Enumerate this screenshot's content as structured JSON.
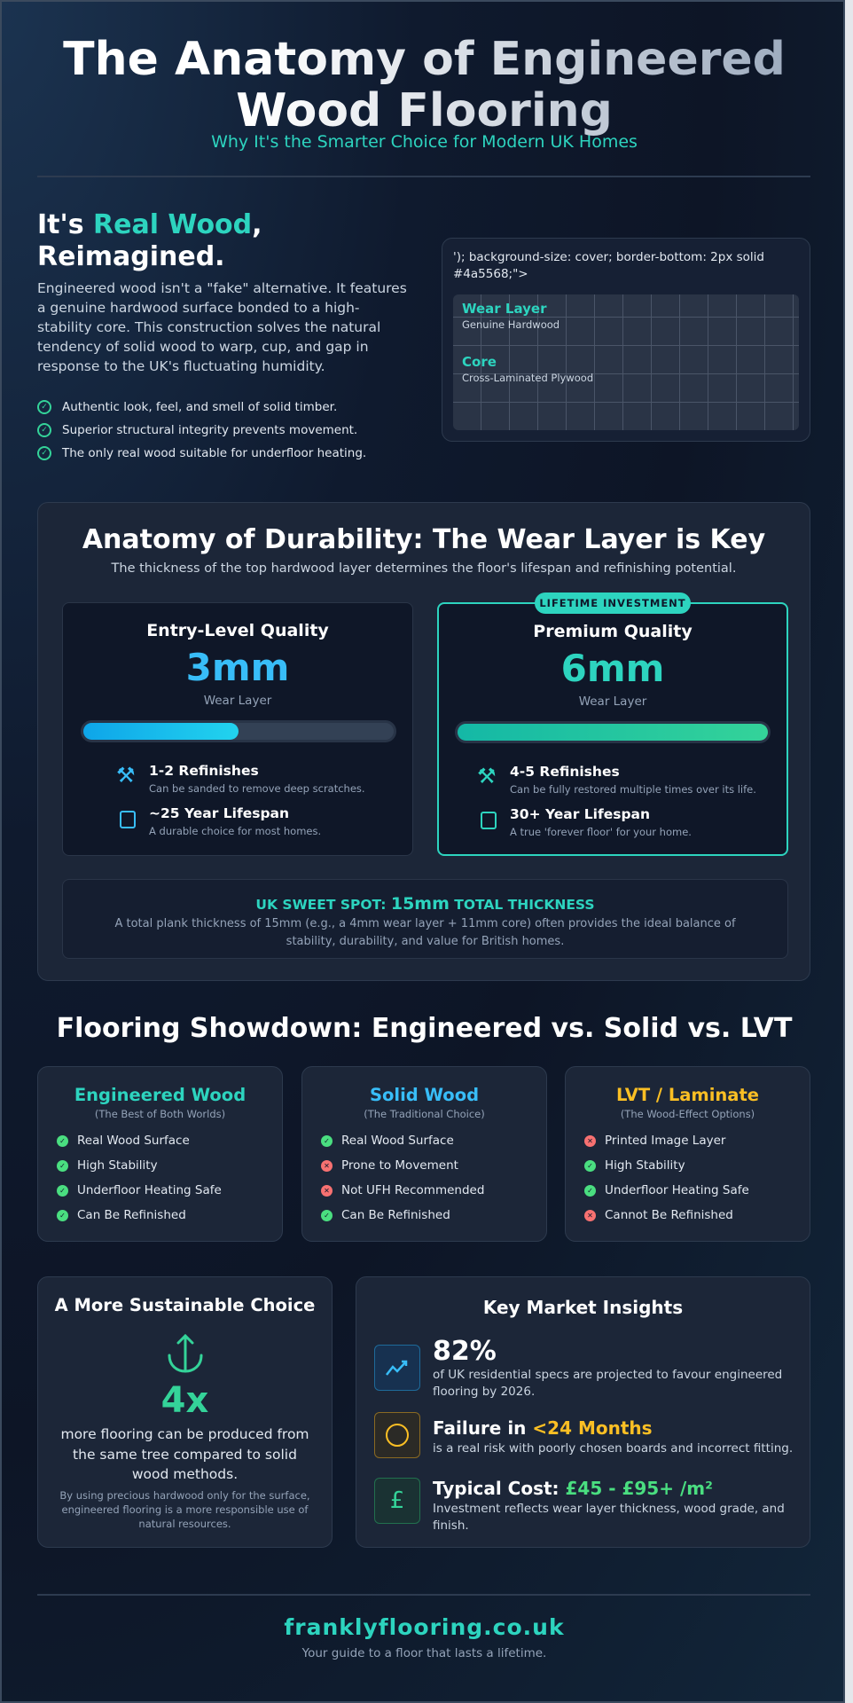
{
  "header": {
    "title_line1": "The Anatomy of Engineered",
    "title_line2": "Wood Flooring",
    "subtitle": "Why It's the Smarter Choice for Modern UK Homes"
  },
  "intro": {
    "heading_pre": "It's ",
    "heading_accent": "Real Wood",
    "heading_post": ",",
    "heading_line2": "Reimagined.",
    "paragraph": "Engineered wood isn't a \"fake\" alternative. It features a genuine hardwood surface bonded to a high-stability core. This construction solves the natural tendency of solid wood to warp, cup, and gap in response to the UK's fluctuating humidity.",
    "checks": [
      "Authentic look, feel, and smell of solid timber.",
      "Superior structural integrity prevents movement.",
      "The only real wood suitable for underfloor heating."
    ],
    "diagram": {
      "broken_text": "'); background-size: cover; border-bottom: 2px solid #4a5568;\">",
      "wear_label": "Wear Layer",
      "wear_sub": "Genuine Hardwood",
      "core_label": "Core",
      "core_sub": "Cross-Laminated Plywood"
    }
  },
  "durability": {
    "title": "Anatomy of Durability: The Wear Layer is Key",
    "subtitle": "The thickness of the top hardwood layer determines the floor's lifespan and refinishing potential.",
    "cards": [
      {
        "title": "Entry-Level Quality",
        "value": "3mm",
        "unit_label": "Wear Layer",
        "fill_percent": 50,
        "features": [
          {
            "title": "1-2 Refinishes",
            "desc": "Can be sanded to remove deep scratches."
          },
          {
            "title": "~25 Year Lifespan",
            "desc": "A durable choice for most homes."
          }
        ]
      },
      {
        "badge": "LIFETIME INVESTMENT",
        "title": "Premium Quality",
        "value": "6mm",
        "unit_label": "Wear Layer",
        "fill_percent": 100,
        "features": [
          {
            "title": "4-5 Refinishes",
            "desc": "Can be fully restored multiple times over its life."
          },
          {
            "title": "30+ Year Lifespan",
            "desc": "A true 'forever floor' for your home."
          }
        ]
      }
    ],
    "sweet_spot": {
      "pre": "UK SWEET SPOT: ",
      "value": "15mm",
      "post": " TOTAL THICKNESS",
      "desc": "A total plank thickness of 15mm (e.g., a 4mm wear layer + 11mm core) often provides the ideal balance of stability, durability, and value for British homes."
    }
  },
  "showdown": {
    "title": "Flooring Showdown: Engineered vs. Solid vs. LVT",
    "columns": [
      {
        "title": "Engineered Wood",
        "subtitle": "(The Best of Both Worlds)",
        "color": "#2dd4bf",
        "items": [
          {
            "label": "Real Wood Surface",
            "ok": true
          },
          {
            "label": "High Stability",
            "ok": true
          },
          {
            "label": "Underfloor Heating Safe",
            "ok": true
          },
          {
            "label": "Can Be Refinished",
            "ok": true
          }
        ]
      },
      {
        "title": "Solid Wood",
        "subtitle": "(The Traditional Choice)",
        "color": "#38bdf8",
        "items": [
          {
            "label": "Real Wood Surface",
            "ok": true
          },
          {
            "label": "Prone to Movement",
            "ok": false
          },
          {
            "label": "Not UFH Recommended",
            "ok": false
          },
          {
            "label": "Can Be Refinished",
            "ok": true
          }
        ]
      },
      {
        "title": "LVT / Laminate",
        "subtitle": "(The Wood-Effect Options)",
        "color": "#fbbf24",
        "items": [
          {
            "label": "Printed Image Layer",
            "ok": false
          },
          {
            "label": "High Stability",
            "ok": true
          },
          {
            "label": "Underfloor Heating Safe",
            "ok": true
          },
          {
            "label": "Cannot Be Refinished",
            "ok": false
          }
        ]
      }
    ]
  },
  "sustainable": {
    "title": "A More Sustainable Choice",
    "value": "4x",
    "text": "more flooring can be produced from the same tree compared to solid wood methods.",
    "note": "By using precious hardwood only for the surface, engineered flooring is a more responsible use of natural resources."
  },
  "insights": {
    "title": "Key Market Insights",
    "items": [
      {
        "title": "82%",
        "accent": "",
        "desc": "of UK residential specs are projected to favour engineered flooring by 2026.",
        "icon": "trend-up-icon"
      },
      {
        "title": "Failure in ",
        "accent": "<24 Months",
        "desc": "is a real risk with poorly chosen boards and incorrect fitting.",
        "icon": "clock-icon"
      },
      {
        "title": "Typical Cost: ",
        "accent": "£45 - £95+ /m²",
        "desc": "Investment reflects wear layer thickness, wood grade, and finish.",
        "icon": "pound-icon"
      }
    ]
  },
  "footer": {
    "site": "franklyflooring.co.uk",
    "tagline": "Your guide to a floor that lasts a lifetime."
  }
}
